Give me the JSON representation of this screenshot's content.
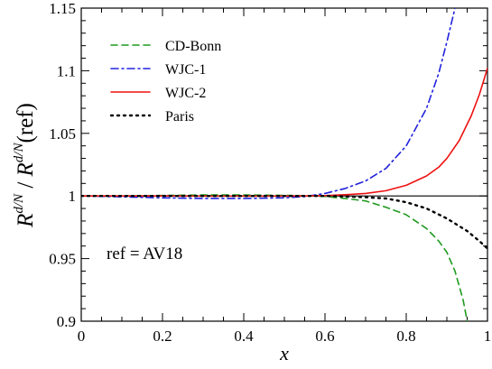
{
  "chart_data": {
    "type": "line",
    "xlabel": "x",
    "ylabel": {
      "base1": "R",
      "sup1": "d/N",
      "sep": " / ",
      "base2": "R",
      "sup2": "d/N",
      "tail": "(ref)"
    },
    "xlim": [
      0,
      1
    ],
    "ylim": [
      0.9,
      1.15
    ],
    "grid": false,
    "legend_position": "top-left",
    "x_ticks": [
      "0",
      "0.2",
      "0.4",
      "0.6",
      "0.8",
      "1"
    ],
    "x_tick_values": [
      0,
      0.2,
      0.4,
      0.6,
      0.8,
      1.0
    ],
    "y_ticks": [
      "0.9",
      "0.95",
      "1",
      "1.05",
      "1.1",
      "1.15"
    ],
    "y_tick_values": [
      0.9,
      0.95,
      1.0,
      1.05,
      1.1,
      1.15
    ],
    "reference_line": 1.0,
    "annotation": "ref = AV18",
    "series": [
      {
        "name": "CD-Bonn",
        "color": "#1f9a1f",
        "dash": "dashed",
        "x": [
          0,
          0.1,
          0.2,
          0.3,
          0.4,
          0.5,
          0.55,
          0.6,
          0.65,
          0.7,
          0.75,
          0.8,
          0.85,
          0.88,
          0.9,
          0.92,
          0.94,
          0.95
        ],
        "y": [
          1.0,
          1.0,
          1.0004,
          1.0008,
          1.0008,
          1.0005,
          1.0002,
          0.9996,
          0.998,
          0.996,
          0.991,
          0.985,
          0.974,
          0.964,
          0.955,
          0.94,
          0.917,
          0.9
        ]
      },
      {
        "name": "WJC-1",
        "color": "#2222dd",
        "dash": "dashdot",
        "x": [
          0,
          0.1,
          0.2,
          0.3,
          0.4,
          0.5,
          0.55,
          0.6,
          0.65,
          0.7,
          0.75,
          0.8,
          0.85,
          0.88,
          0.9,
          0.92
        ],
        "y": [
          1.0,
          0.9993,
          0.9985,
          0.998,
          0.998,
          0.9985,
          0.9995,
          1.002,
          1.006,
          1.012,
          1.022,
          1.04,
          1.07,
          1.098,
          1.123,
          1.15
        ]
      },
      {
        "name": "WJC-2",
        "color": "#ee1111",
        "dash": "solid",
        "x": [
          0,
          0.1,
          0.2,
          0.3,
          0.4,
          0.5,
          0.55,
          0.6,
          0.65,
          0.7,
          0.75,
          0.8,
          0.85,
          0.88,
          0.9,
          0.93,
          0.96,
          0.98,
          1.0
        ],
        "y": [
          1.0,
          1.0,
          1.0,
          0.9999,
          0.9999,
          0.9999,
          1.0,
          1.0003,
          1.001,
          1.002,
          1.0042,
          1.0085,
          1.016,
          1.023,
          1.03,
          1.044,
          1.064,
          1.081,
          1.102
        ]
      },
      {
        "name": "Paris",
        "color": "#000000",
        "dash": "dotted",
        "x": [
          0,
          0.1,
          0.2,
          0.3,
          0.4,
          0.5,
          0.55,
          0.6,
          0.65,
          0.7,
          0.75,
          0.8,
          0.85,
          0.9,
          0.95,
          0.98,
          1.0
        ],
        "y": [
          1.0,
          1.0,
          1.0,
          1.0,
          1.0,
          1.0,
          1.0,
          1.0,
          0.9996,
          0.999,
          0.998,
          0.995,
          0.99,
          0.982,
          0.972,
          0.964,
          0.958
        ]
      }
    ]
  }
}
